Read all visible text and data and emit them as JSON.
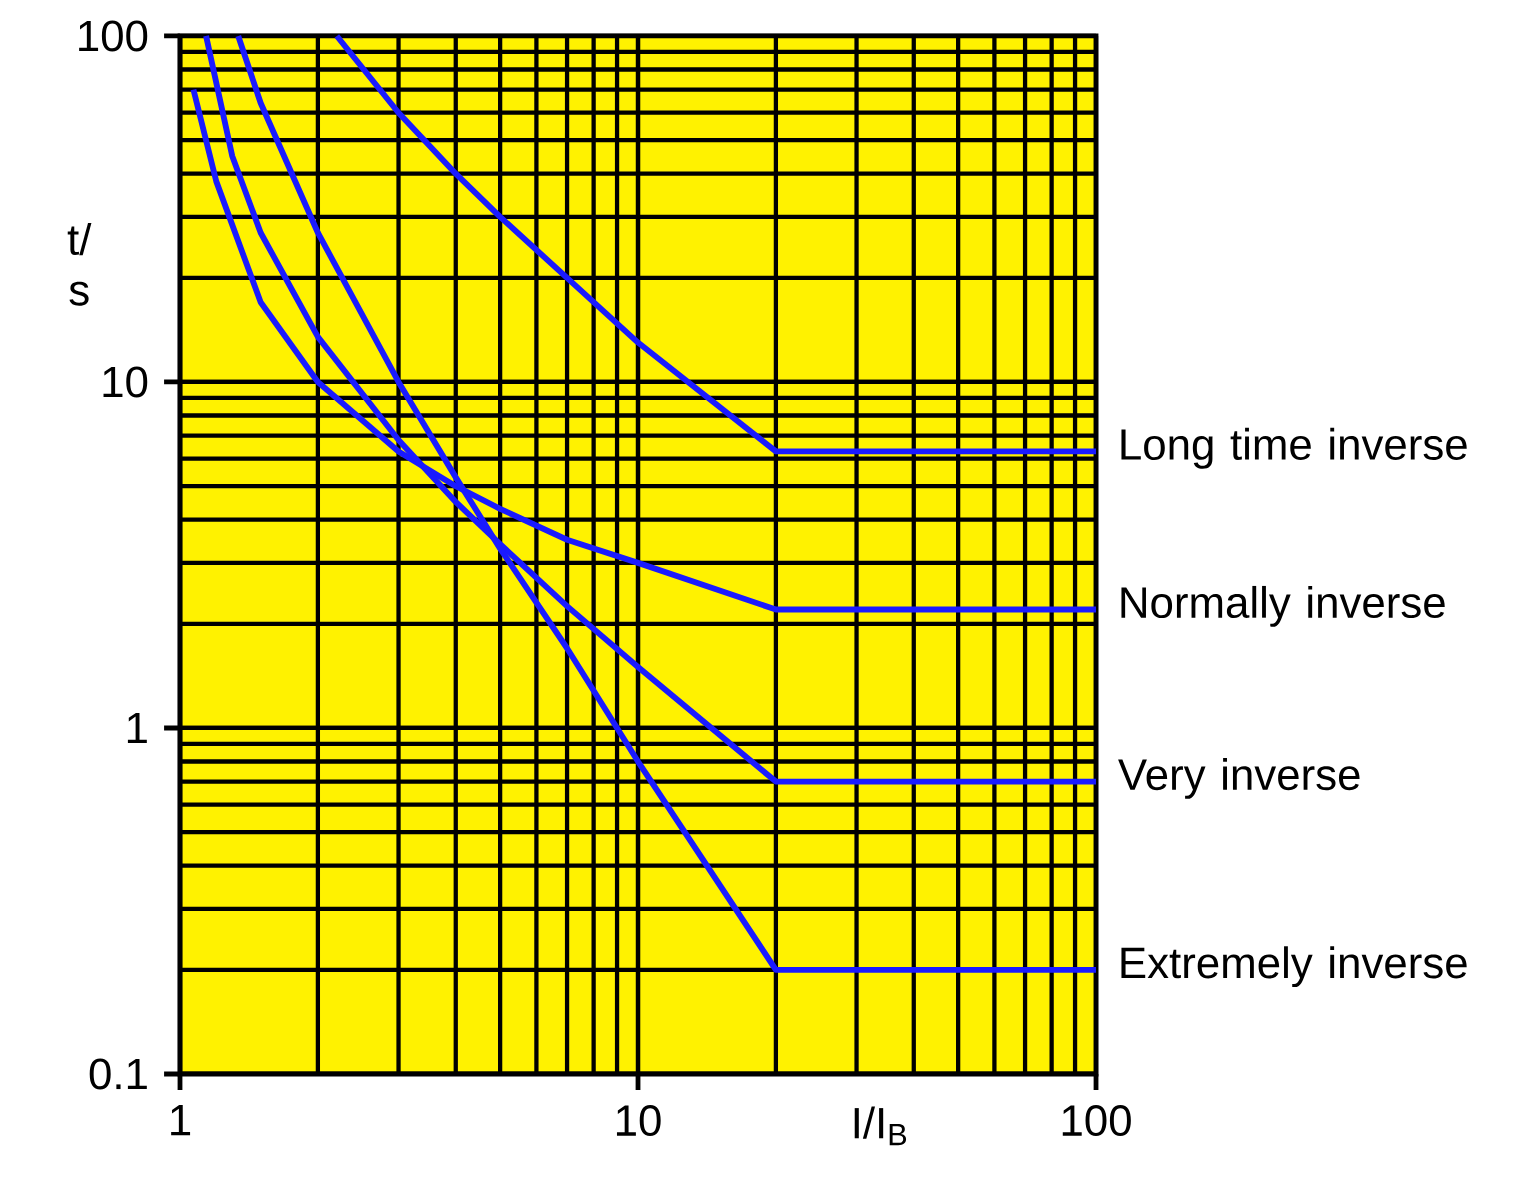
{
  "chart_data": {
    "type": "line",
    "xlabel": "I/I$_{B}$",
    "ylabel": "t/ s",
    "log": "xy",
    "grid": true,
    "xlim": [
      1,
      100
    ],
    "ylim": [
      0.1,
      100
    ],
    "xticks": [
      1,
      10,
      100
    ],
    "yticks": [
      0.1,
      1,
      10,
      100
    ],
    "series": [
      {
        "name": "Long time inverse",
        "color": "#1a1aff",
        "x": [
          2.2,
          3,
          4,
          5,
          7,
          10,
          20,
          100
        ],
        "values": [
          100,
          60,
          40,
          30,
          20,
          13,
          6.3,
          6.3
        ]
      },
      {
        "name": "Normally inverse",
        "color": "#1a1aff",
        "x": [
          1.07,
          1.2,
          1.5,
          2,
          3,
          4,
          5,
          7,
          10,
          20,
          100
        ],
        "values": [
          70,
          38,
          17,
          10,
          6.3,
          5,
          4.3,
          3.5,
          3,
          2.2,
          2.2
        ]
      },
      {
        "name": "Very inverse",
        "color": "#1a1aff",
        "x": [
          1.14,
          1.3,
          1.5,
          2,
          3,
          4,
          5,
          7,
          10,
          20,
          100
        ],
        "values": [
          100,
          45,
          27,
          13.5,
          6.8,
          4.5,
          3.4,
          2.25,
          1.5,
          0.7,
          0.7
        ]
      },
      {
        "name": "Extremely inverse",
        "color": "#1a1aff",
        "x": [
          1.34,
          1.5,
          2,
          3,
          4,
          5,
          7,
          10,
          20,
          100
        ],
        "values": [
          100,
          64,
          27,
          10,
          5.3,
          3.3,
          1.7,
          0.8,
          0.2,
          0.2
        ]
      }
    ]
  }
}
